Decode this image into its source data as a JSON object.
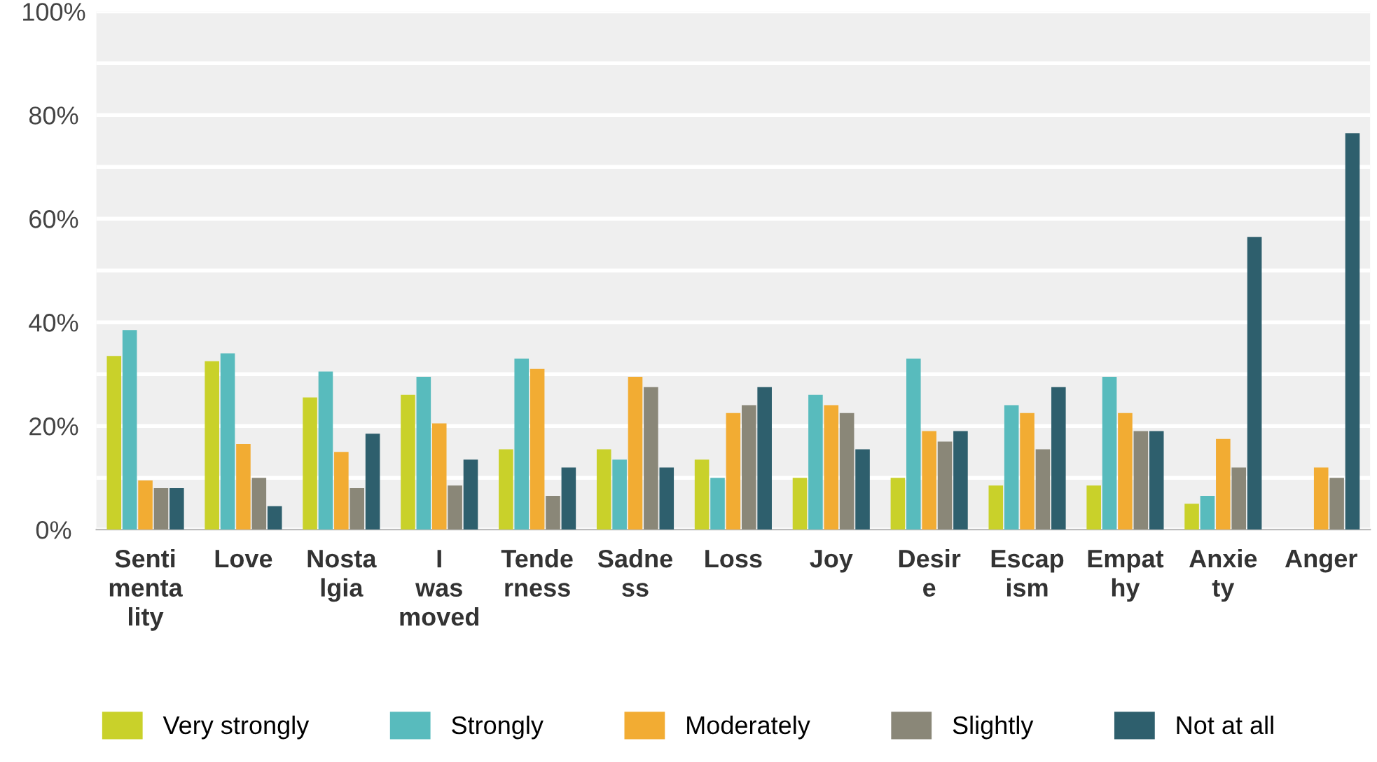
{
  "chart_data": {
    "type": "bar",
    "categories": [
      "Senti\nmenta\nlity",
      "Love",
      "Nosta\nlgia",
      "I\nwas\nmoved",
      "Tende\nrness",
      "Sadne\nss",
      "Loss",
      "Joy",
      "Desir\ne",
      "Escap\nism",
      "Empat\nhy",
      "Anxie\nty",
      "Anger"
    ],
    "series": [
      {
        "name": "Very strongly",
        "color": "#c9d12a",
        "values": [
          33.5,
          32.5,
          25.5,
          26,
          15.5,
          15.5,
          13.5,
          10,
          10,
          8.5,
          8.5,
          5,
          0
        ]
      },
      {
        "name": "Strongly",
        "color": "#58bbbd",
        "values": [
          38.5,
          34,
          30.5,
          29.5,
          33,
          13.5,
          10,
          26,
          33,
          24,
          29.5,
          6.5,
          0
        ]
      },
      {
        "name": "Moderately",
        "color": "#f2ac33",
        "values": [
          9.5,
          16.5,
          15,
          20.5,
          31,
          29.5,
          22.5,
          24,
          19,
          22.5,
          22.5,
          17.5,
          12
        ]
      },
      {
        "name": "Slightly",
        "color": "#8a8778",
        "values": [
          8,
          10,
          8,
          8.5,
          6.5,
          27.5,
          24,
          22.5,
          17,
          15.5,
          19,
          12,
          10
        ]
      },
      {
        "name": "Not at all",
        "color": "#2e5f6d",
        "values": [
          8,
          4.5,
          18.5,
          13.5,
          12,
          12,
          27.5,
          15.5,
          19,
          27.5,
          19,
          56.5,
          76.5
        ]
      }
    ],
    "ylim": [
      0,
      100
    ],
    "yticks": [
      {
        "value": 0,
        "label": "0%"
      },
      {
        "value": 10,
        "label": null
      },
      {
        "value": 20,
        "label": "20%"
      },
      {
        "value": 30,
        "label": null
      },
      {
        "value": 40,
        "label": "40%"
      },
      {
        "value": 50,
        "label": null
      },
      {
        "value": 60,
        "label": "60%"
      },
      {
        "value": 70,
        "label": null
      },
      {
        "value": 80,
        "label": "80%"
      },
      {
        "value": 90,
        "label": null
      },
      {
        "value": 100,
        "label": "100%"
      }
    ],
    "grid": "y",
    "legend": "bottom"
  }
}
